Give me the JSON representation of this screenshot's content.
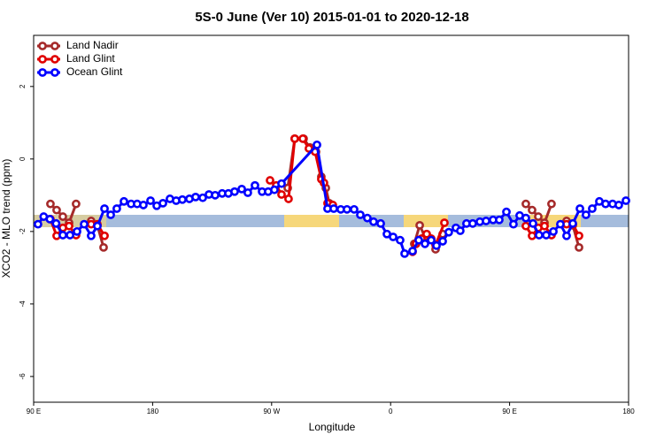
{
  "chart_data": {
    "type": "line",
    "title": "5S-0 June (Ver 10)   2015-01-01 to 2020-12-18",
    "x_label": "Longitude",
    "y_label": "XCO2 - MLO trend (ppm)",
    "xlim": [
      90,
      540
    ],
    "ylim": [
      -6.71,
      3.41
    ],
    "xticks": [
      {
        "value": 90,
        "label": "90 E"
      },
      {
        "value": 180,
        "label": "180"
      },
      {
        "value": 270,
        "label": "90 W"
      },
      {
        "value": 360,
        "label": "0"
      },
      {
        "value": 450,
        "label": "90 E"
      },
      {
        "value": 540,
        "label": "180"
      }
    ],
    "yticks": [
      2,
      0,
      -2,
      -4,
      -6
    ],
    "legend": "top-left",
    "series": [
      {
        "name": "Land Nadir",
        "color": "#a52a2a",
        "x": [
          102.7,
          107.4,
          112.1,
          116.8,
          122.1,
          null,
          133.5,
          138.2,
          142.9,
          null,
          282.2,
          287.5,
          294.2,
          298.9,
          303.6,
          307.6,
          311.0,
          313.6,
          null,
          377.9,
          382.0,
          386.0,
          390.7,
          394.0,
          399.4,
          null,
          462.3,
          467.0,
          471.7,
          476.4,
          481.7,
          null,
          493.1,
          497.8,
          502.5
        ],
        "values": [
          -1.24,
          -1.41,
          -1.59,
          -1.76,
          -1.24,
          null,
          -1.71,
          -1.83,
          -2.44,
          null,
          -0.8,
          0.56,
          0.56,
          0.32,
          0.2,
          -0.49,
          -0.8,
          -1.22,
          null,
          -2.34,
          -1.83,
          -2.15,
          -2.2,
          -2.49,
          -2.07,
          null,
          -1.24,
          -1.41,
          -1.59,
          -1.76,
          -1.24,
          null,
          -1.71,
          -1.83,
          -2.44
        ]
      },
      {
        "name": "Land Glint",
        "color": "#e00000",
        "x": [
          102.7,
          107.4,
          112.1,
          116.8,
          122.1,
          null,
          133.5,
          138.2,
          143.6,
          null,
          268.8,
          273.5,
          277.5,
          282.8,
          287.5,
          293.6,
          298.2,
          302.9,
          307.6,
          309.6,
          312.3,
          316.3,
          null,
          376.6,
          379.3,
          383.3,
          387.3,
          390.7,
          394.0,
          400.7,
          null,
          462.3,
          467.0,
          471.7,
          476.4,
          481.7,
          null,
          493.1,
          497.8,
          502.5
        ],
        "values": [
          -1.66,
          -2.12,
          -1.9,
          -1.85,
          -2.1,
          null,
          -1.8,
          -1.8,
          -2.12,
          null,
          -0.59,
          -0.73,
          -0.98,
          -1.1,
          0.56,
          0.56,
          0.29,
          0.2,
          -0.56,
          -0.66,
          -1.22,
          -1.27,
          null,
          -2.56,
          -2.34,
          -2.2,
          -2.07,
          -2.2,
          -2.37,
          -1.76,
          null,
          -1.85,
          -2.12,
          -1.9,
          -1.85,
          -2.1,
          null,
          -1.8,
          -1.8,
          -2.12
        ]
      },
      {
        "name": "Ocean Glint",
        "color": "#0000ff",
        "x": [
          93.3,
          97.6,
          102.3,
          107.0,
          112.1,
          117.5,
          122.8,
          128.2,
          133.5,
          138.2,
          143.6,
          148.3,
          152.9,
          158.3,
          163.7,
          168.3,
          173.0,
          178.4,
          183.1,
          187.8,
          193.1,
          197.8,
          202.5,
          207.8,
          212.5,
          217.9,
          222.6,
          227.3,
          232.6,
          237.3,
          242.0,
          247.4,
          252.0,
          257.4,
          262.8,
          267.4,
          272.1,
          277.5,
          304.3,
          312.3,
          317.0,
          322.3,
          327.0,
          332.4,
          337.1,
          342.4,
          347.1,
          352.5,
          357.2,
          361.9,
          367.2,
          370.6,
          376.6,
          381.3,
          386.0,
          390.7,
          394.7,
          399.4,
          404.0,
          409.4,
          412.7,
          417.4,
          422.1,
          427.5,
          432.2,
          437.5,
          442.2,
          447.6,
          452.9,
          457.6,
          462.3,
          467.7,
          472.3,
          477.7,
          483.1,
          488.4,
          493.1,
          497.8,
          503.2,
          507.8,
          512.5,
          517.9,
          522.6,
          527.9,
          532.6,
          538.0
        ],
        "values": [
          -1.8,
          -1.59,
          -1.66,
          -1.78,
          -2.1,
          -2.1,
          -2.0,
          -1.8,
          -2.12,
          -1.85,
          -1.37,
          -1.54,
          -1.37,
          -1.17,
          -1.24,
          -1.24,
          -1.27,
          -1.15,
          -1.29,
          -1.22,
          -1.1,
          -1.15,
          -1.12,
          -1.1,
          -1.05,
          -1.07,
          -0.98,
          -1.0,
          -0.95,
          -0.95,
          -0.9,
          -0.83,
          -0.93,
          -0.73,
          -0.9,
          -0.9,
          -0.85,
          -0.68,
          0.39,
          -1.37,
          -1.37,
          -1.39,
          -1.39,
          -1.39,
          -1.54,
          -1.63,
          -1.73,
          -1.78,
          -2.07,
          -2.15,
          -2.24,
          -2.61,
          -2.54,
          -2.24,
          -2.34,
          -2.24,
          -2.39,
          -2.27,
          -2.02,
          -1.9,
          -1.98,
          -1.78,
          -1.78,
          -1.73,
          -1.71,
          -1.68,
          -1.68,
          -1.46,
          -1.8,
          -1.56,
          -1.63,
          -1.78,
          -2.1,
          -2.1,
          -2.0,
          -1.8,
          -2.12,
          -1.78,
          -1.37,
          -1.54,
          -1.37,
          -1.17,
          -1.24,
          -1.24,
          -1.27,
          -1.15
        ]
      }
    ]
  }
}
